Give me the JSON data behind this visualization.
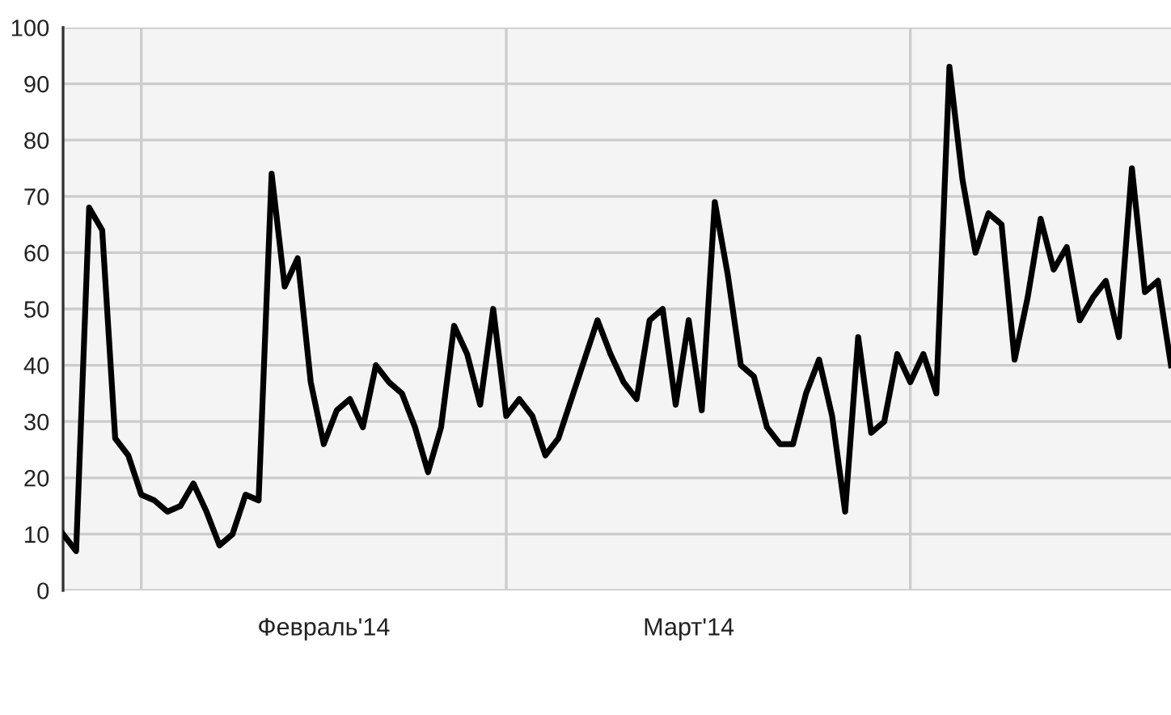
{
  "chart_data": {
    "type": "line",
    "x": [
      "2014-01-26",
      "2014-01-27",
      "2014-01-28",
      "2014-01-29",
      "2014-01-30",
      "2014-01-31",
      "2014-02-01",
      "2014-02-02",
      "2014-02-03",
      "2014-02-04",
      "2014-02-05",
      "2014-02-06",
      "2014-02-07",
      "2014-02-08",
      "2014-02-09",
      "2014-02-10",
      "2014-02-11",
      "2014-02-12",
      "2014-02-13",
      "2014-02-14",
      "2014-02-15",
      "2014-02-16",
      "2014-02-17",
      "2014-02-18",
      "2014-02-19",
      "2014-02-20",
      "2014-02-21",
      "2014-02-22",
      "2014-02-23",
      "2014-02-24",
      "2014-02-25",
      "2014-02-26",
      "2014-02-27",
      "2014-02-28",
      "2014-03-01",
      "2014-03-02",
      "2014-03-03",
      "2014-03-04",
      "2014-03-05",
      "2014-03-06",
      "2014-03-07",
      "2014-03-08",
      "2014-03-09",
      "2014-03-10",
      "2014-03-11",
      "2014-03-12",
      "2014-03-13",
      "2014-03-14",
      "2014-03-15",
      "2014-03-16",
      "2014-03-17",
      "2014-03-18",
      "2014-03-19",
      "2014-03-20",
      "2014-03-21",
      "2014-03-22",
      "2014-03-23",
      "2014-03-24",
      "2014-03-25",
      "2014-03-26",
      "2014-03-27",
      "2014-03-28",
      "2014-03-29",
      "2014-03-30",
      "2014-03-31",
      "2014-04-01",
      "2014-04-02",
      "2014-04-03",
      "2014-04-04",
      "2014-04-05",
      "2014-04-06",
      "2014-04-07",
      "2014-04-08",
      "2014-04-09",
      "2014-04-10",
      "2014-04-11",
      "2014-04-12",
      "2014-04-13",
      "2014-04-14",
      "2014-04-15",
      "2014-04-16",
      "2014-04-17",
      "2014-04-18",
      "2014-04-19",
      "2014-04-20",
      "2014-04-21"
    ],
    "series": [
      {
        "color": "#000000",
        "values": [
          10,
          7,
          68,
          64,
          27,
          24,
          17,
          16,
          14,
          15,
          19,
          14,
          8,
          10,
          17,
          16,
          74,
          54,
          59,
          37,
          26,
          32,
          34,
          29,
          40,
          37,
          35,
          29,
          21,
          29,
          47,
          42,
          33,
          50,
          31,
          34,
          31,
          24,
          27,
          34,
          41,
          48,
          42,
          37,
          34,
          48,
          50,
          33,
          48,
          32,
          69,
          56,
          40,
          38,
          29,
          26,
          26,
          35,
          41,
          31,
          14,
          45,
          28,
          30,
          42,
          37,
          42,
          35,
          93,
          73,
          60,
          67,
          65,
          41,
          52,
          66,
          57,
          61,
          48,
          52,
          55,
          45,
          75,
          53,
          55,
          40
        ]
      }
    ],
    "xlim": [
      "2014-01-26",
      "2014-04-21"
    ],
    "xticks": [
      {
        "value": "2014-02-01",
        "label": null
      },
      {
        "value": "2014-02-15",
        "label": "Февраль'14"
      },
      {
        "value": "2014-03-01",
        "label": null
      },
      {
        "value": "2014-03-15",
        "label": "Март'14"
      },
      {
        "value": "2014-04-01",
        "label": null
      }
    ],
    "ylim": [
      0,
      100
    ],
    "yticks": [
      0,
      10,
      20,
      30,
      40,
      50,
      60,
      70,
      80,
      90,
      100
    ],
    "grid": true,
    "marker": "none",
    "line_style": "solid"
  }
}
